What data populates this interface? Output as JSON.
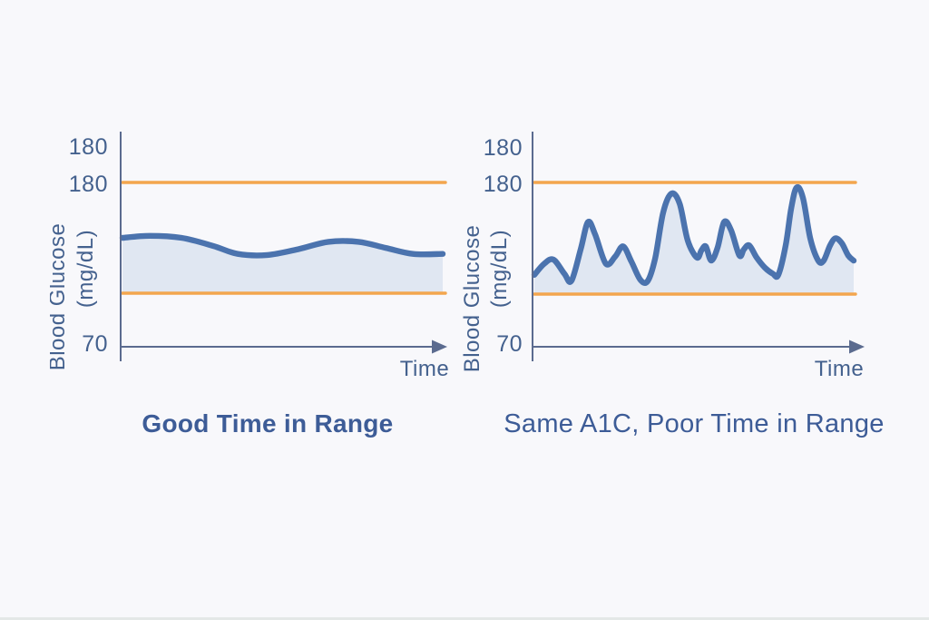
{
  "colors": {
    "background": "#f8f8fb",
    "curve": "#4b73ae",
    "range_line": "#f3a64e",
    "fill": "#dce4f0",
    "axis": "#5b6b8f",
    "tick_text": "#44618e",
    "title": "#3d5c97"
  },
  "chart_data": [
    {
      "type": "line",
      "title": "Good Time in Range",
      "ylabel_line1": "Blood Glucose",
      "ylabel_line2": "(mg/dL)",
      "xlabel": "Time",
      "ytick_labels": [
        "180",
        "180",
        "70"
      ],
      "target_range": {
        "low": 70,
        "high": 180
      },
      "series_name": "blood-glucose",
      "x_unit": "percent-of-time-axis",
      "x": [
        0,
        8.5,
        18.4,
        28.3,
        36,
        45.3,
        55.2,
        64.3,
        73.7,
        82.2,
        90.7,
        100
      ],
      "values": [
        125,
        127,
        125,
        117,
        109,
        108,
        114,
        121,
        121,
        115,
        109,
        109
      ]
    },
    {
      "type": "line",
      "title": "Same A1C, Poor Time in Range",
      "ylabel_line1": "Blood Glucose",
      "ylabel_line2": "(mg/dL)",
      "xlabel": "Time",
      "ytick_labels": [
        "180",
        "180",
        "70"
      ],
      "target_range": {
        "low": 70,
        "high": 180
      },
      "series_name": "blood-glucose",
      "x_unit": "percent-of-time-axis",
      "x": [
        0,
        3.1,
        6,
        9.4,
        11.6,
        14.5,
        16.8,
        19,
        22.4,
        25.3,
        27.8,
        30.4,
        33.2,
        35.5,
        37.8,
        40.3,
        42.9,
        45.5,
        48,
        50.9,
        52.3,
        53.7,
        55.4,
        57.4,
        59.4,
        61.6,
        64.2,
        65.6,
        67.3,
        69.6,
        72.2,
        74.7,
        76.4,
        78.7,
        80.4,
        82.1,
        84.1,
        86.4,
        88.9,
        90.6,
        92.6,
        94.3,
        96.3,
        98.3,
        100
      ],
      "values": [
        89,
        100,
        104,
        90,
        83,
        114,
        141,
        129,
        100,
        107,
        117,
        102,
        84,
        83,
        105,
        150,
        169,
        159,
        123,
        106,
        113,
        117,
        103,
        116,
        141,
        133,
        108,
        114,
        118,
        106,
        96,
        90,
        89,
        118,
        154,
        175,
        165,
        125,
        103,
        103,
        118,
        125,
        120,
        108,
        103
      ]
    }
  ]
}
